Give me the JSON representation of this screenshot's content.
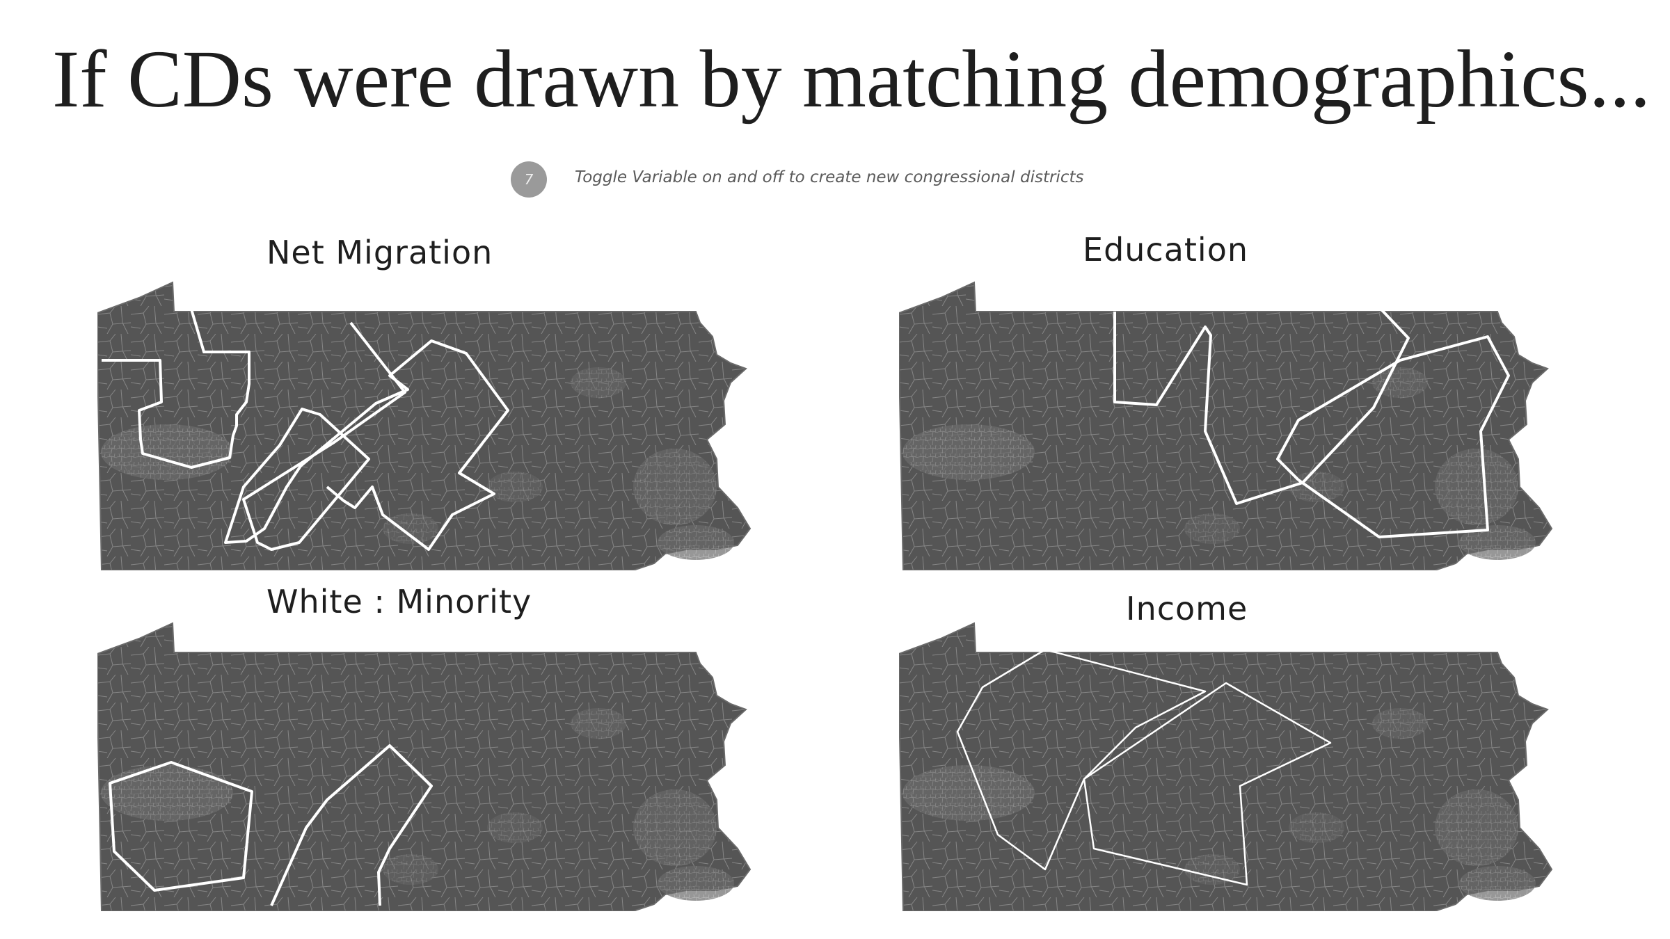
{
  "title": "If CDs were drawn by matching demographics...",
  "step_number": "7",
  "instruction": "Toggle Variable on and off to create new congressional districts",
  "colors": {
    "map_fill": "#555555",
    "map_stroke": "#7a7a7a",
    "tract_lines": "#8a8a8a",
    "district_outline": "#ffffff",
    "badge": "#9a9a9a"
  },
  "panels": [
    {
      "label": "Net Migration"
    },
    {
      "label": "Education"
    },
    {
      "label": "White : Minority"
    },
    {
      "label": "Income"
    }
  ]
}
